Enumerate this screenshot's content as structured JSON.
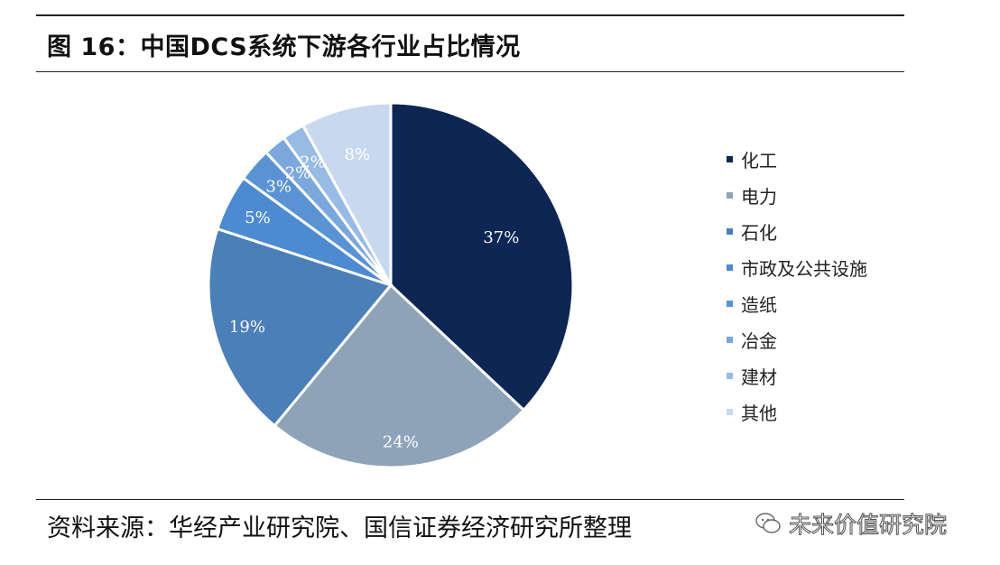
{
  "header": {
    "title": "图 16：中国DCS系统下游各行业占比情况"
  },
  "footer": {
    "source": "资料来源：华经产业研究院、国信证券经济研究所整理",
    "watermark": "未来价值研究院"
  },
  "chart_data": {
    "type": "pie",
    "categories": [
      "化工",
      "电力",
      "石化",
      "市政及公共设施",
      "造纸",
      "冶金",
      "建材",
      "其他"
    ],
    "values": [
      37,
      24,
      19,
      5,
      3,
      2,
      2,
      8
    ],
    "labels": [
      "37%",
      "24%",
      "19%",
      "5%",
      "3%",
      "2%",
      "2%",
      "8%"
    ],
    "unit": "%",
    "start": "12 o'clock",
    "direction": "clockwise",
    "legend_position": "right",
    "colors": [
      "#0d2654",
      "#8fa3b8",
      "#4a7fb8",
      "#4d8ad0",
      "#5a93d3",
      "#7aa7dc",
      "#97bbe4",
      "#c8d8ee"
    ]
  }
}
